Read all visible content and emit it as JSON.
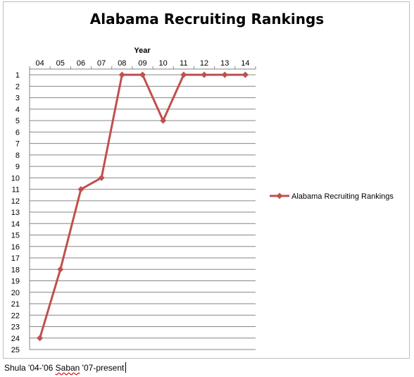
{
  "chart_data": {
    "type": "line",
    "title": "Alabama Recruiting Rankings",
    "xlabel": "Year",
    "ylabel": "",
    "categories": [
      "04",
      "05",
      "06",
      "07",
      "08",
      "09",
      "10",
      "11",
      "12",
      "13",
      "14"
    ],
    "y_ticks": [
      "1",
      "2",
      "3",
      "4",
      "5",
      "6",
      "7",
      "8",
      "9",
      "10",
      "11",
      "12",
      "13",
      "14",
      "15",
      "16",
      "17",
      "18",
      "19",
      "20",
      "21",
      "22",
      "23",
      "24",
      "25"
    ],
    "ylim": [
      1,
      25
    ],
    "y_inverted": true,
    "x_axis_position": "top",
    "grid": true,
    "legend_position": "right",
    "series": [
      {
        "name": "Alabama Recruiting Rankings",
        "values": [
          24,
          18,
          11,
          10,
          1,
          1,
          5,
          1,
          1,
          1,
          1
        ],
        "color": "#c0504d"
      }
    ]
  },
  "caption": {
    "prefix": "Shula '04-'06 ",
    "saban": "Saban",
    "suffix": " '07-present"
  },
  "colors": {
    "series": "#c0504d",
    "grid": "#868686",
    "frame": "#bdbdbd"
  }
}
